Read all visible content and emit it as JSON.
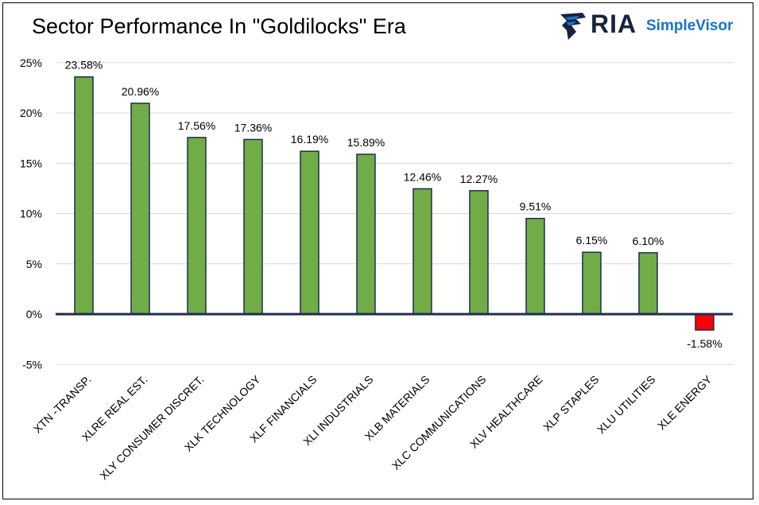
{
  "header": {
    "title": "Sector Performance In \"Goldilocks\" Era",
    "logo_primary": "RIA",
    "logo_secondary": "SimpleVisor"
  },
  "colors": {
    "positive_bar": "#70ad47",
    "negative_bar": "#ff0000",
    "bar_outline": "#1f2d4e",
    "zero_line": "#1f2d4e",
    "gridline": "#d9d9d9",
    "logo_dark": "#17233f",
    "logo_blue": "#1a73c9"
  },
  "chart_data": {
    "type": "bar",
    "title": "Sector Performance In \"Goldilocks\" Era",
    "categories": [
      "XTN -TRANSP.",
      "XLRE REAL EST.",
      "XLY CONSUMER DISCRET.",
      "XLK TECHNOLOGY",
      "XLF FINANCIALS",
      "XLI INDUSTRIALS",
      "XLB MATERIALS",
      "XLC COMMUNICATIONS",
      "XLV HEALTHCARE",
      "XLP STAPLES",
      "XLU UTILITIES",
      "XLE ENERGY"
    ],
    "values": [
      23.58,
      20.96,
      17.56,
      17.36,
      16.19,
      15.89,
      12.46,
      12.27,
      9.51,
      6.15,
      6.1,
      -1.58
    ],
    "data_labels": [
      "23.58%",
      "20.96%",
      "17.56%",
      "17.36%",
      "16.19%",
      "15.89%",
      "12.46%",
      "12.27%",
      "9.51%",
      "6.15%",
      "6.10%",
      "-1.58%"
    ],
    "yticks": [
      25,
      20,
      15,
      10,
      5,
      0,
      -5
    ],
    "ytick_labels": [
      "25%",
      "20%",
      "15%",
      "10%",
      "5%",
      "0%",
      "-5%"
    ],
    "ylim": [
      -5,
      25
    ],
    "xlabel": "",
    "ylabel": "",
    "grid": true,
    "legend": "none"
  }
}
